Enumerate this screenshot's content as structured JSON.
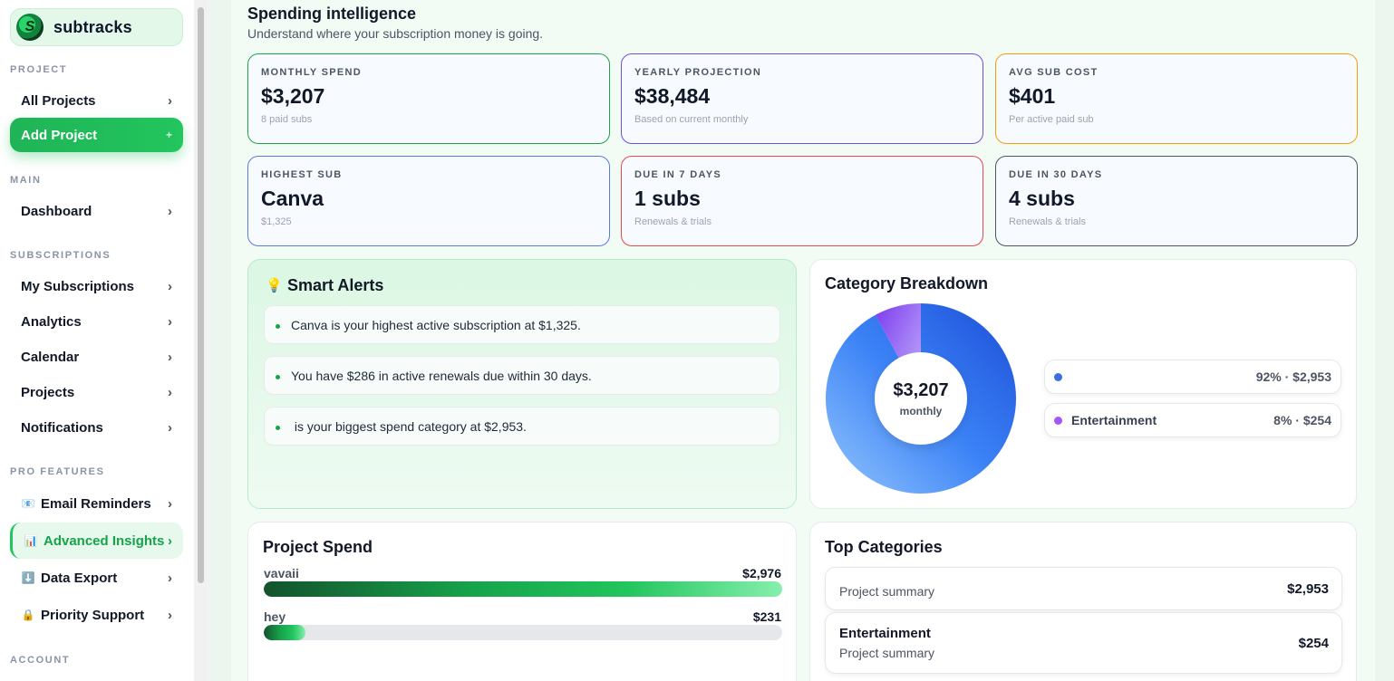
{
  "brand": {
    "name": "subtracks",
    "logo_letter": "S"
  },
  "sidebar": {
    "sections": {
      "project": "PROJECT",
      "main": "MAIN",
      "subscriptions": "SUBSCRIPTIONS",
      "pro": "PRO FEATURES",
      "account": "ACCOUNT"
    },
    "items": {
      "all_projects": "All Projects",
      "add_project": "Add Project",
      "dashboard": "Dashboard",
      "my_subscriptions": "My Subscriptions",
      "analytics": "Analytics",
      "calendar": "Calendar",
      "projects": "Projects",
      "notifications": "Notifications",
      "email_reminders": "Email Reminders",
      "advanced_insights": "Advanced Insights",
      "data_export": "Data Export",
      "priority_support": "Priority Support"
    },
    "chevron": "›",
    "plus": "+"
  },
  "header": {
    "title": "Spending intelligence",
    "subtitle": "Understand where your subscription money is going."
  },
  "stats": [
    {
      "key": "MONTHLY SPEND",
      "value": "$3,207",
      "sub": "8 paid subs",
      "color": "#22a34a"
    },
    {
      "key": "YEARLY PROJECTION",
      "value": "$38,484",
      "sub": "Based on current monthly",
      "color": "#6d4fd8"
    },
    {
      "key": "AVG SUB COST",
      "value": "$401",
      "sub": "Per active paid sub",
      "color": "#f59e0b"
    },
    {
      "key": "HIGHEST SUB",
      "value": "Canva",
      "sub": "$1,325",
      "color": "#5b7ad9"
    },
    {
      "key": "DUE IN 7 DAYS",
      "value": "1 subs",
      "sub": "Renewals & trials",
      "color": "#e5484d"
    },
    {
      "key": "DUE IN 30 DAYS",
      "value": "4 subs",
      "sub": "Renewals & trials",
      "color": "#4b5563"
    }
  ],
  "smart_alerts": {
    "title": "Smart Alerts",
    "icon": "lightbulb-icon",
    "items": [
      "Canva is your highest active subscription at $1,325.",
      "You have $286 in active renewals due within 30 days.",
      " is your biggest spend category at $2,953."
    ]
  },
  "category_breakdown": {
    "title": "Category Breakdown",
    "center_value": "$3,207",
    "center_label": "monthly",
    "legend": [
      {
        "name": "",
        "pct_value": "92% · $2,953",
        "color": "#3b6fe0"
      },
      {
        "name": "Entertainment",
        "pct_value": "8% · $254",
        "color": "#a855f7"
      }
    ]
  },
  "chart_data": {
    "type": "pie",
    "title": "Category Breakdown",
    "categories": [
      "",
      "Entertainment"
    ],
    "values": [
      2953,
      254
    ],
    "percentages": [
      92,
      8
    ],
    "total": 3207,
    "colors": [
      "#2f63e0",
      "#9b5cf0"
    ]
  },
  "project_spend": {
    "title": "Project Spend",
    "projects": [
      {
        "name": "vavaii",
        "value": "$2,976",
        "fraction": 1.0
      },
      {
        "name": "hey",
        "value": "$231",
        "fraction": 0.08
      }
    ]
  },
  "top_categories": {
    "title": "Top Categories",
    "rows": [
      {
        "name": "",
        "sub": "Project summary",
        "value": "$2,953"
      },
      {
        "name": "Entertainment",
        "sub": "Project summary",
        "value": "$254"
      }
    ]
  }
}
